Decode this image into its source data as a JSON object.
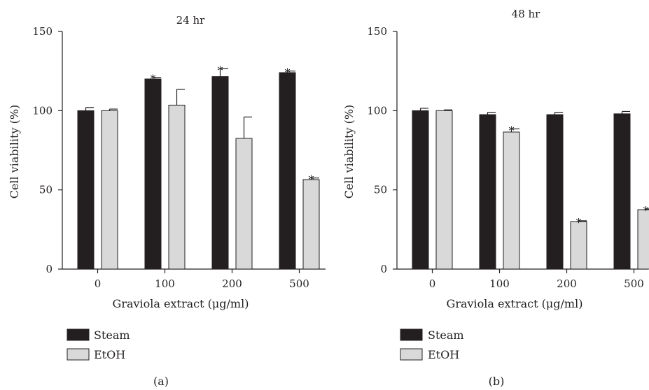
{
  "chart_data": [
    {
      "type": "bar",
      "title": "24 hr",
      "panel_label": "(a)",
      "xlabel": "Graviola extract (μg/ml)",
      "ylabel": "Cell viability (%)",
      "ylim": [
        0,
        150
      ],
      "yticks": [
        0,
        50,
        100,
        150
      ],
      "categories": [
        "0",
        "100",
        "200",
        "500"
      ],
      "series": [
        {
          "name": "Steam",
          "color": "#231f20",
          "values": [
            100,
            120,
            121.5,
            124
          ],
          "errors": [
            2,
            1,
            5,
            1
          ],
          "significant": [
            false,
            true,
            true,
            true
          ]
        },
        {
          "name": "EtOH",
          "color": "#d9d9d9",
          "values": [
            100,
            103.5,
            82.5,
            56.5
          ],
          "errors": [
            1,
            10,
            13.5,
            1
          ],
          "significant": [
            false,
            false,
            false,
            true
          ]
        }
      ],
      "significance_marker": "*",
      "legend_position": "bottom-left",
      "grid": false
    },
    {
      "type": "bar",
      "title": "48 hr",
      "panel_label": "(b)",
      "xlabel": "Graviola extract (μg/ml)",
      "ylabel": "Cell viability (%)",
      "ylim": [
        0,
        150
      ],
      "yticks": [
        0,
        50,
        100,
        150
      ],
      "categories": [
        "0",
        "100",
        "200",
        "500"
      ],
      "series": [
        {
          "name": "Steam",
          "color": "#231f20",
          "values": [
            100,
            97.5,
            97.5,
            98
          ],
          "errors": [
            1.5,
            1.5,
            1.5,
            1.5
          ],
          "significant": [
            false,
            false,
            false,
            false
          ]
        },
        {
          "name": "EtOH",
          "color": "#d9d9d9",
          "values": [
            100,
            86.5,
            30,
            37.5
          ],
          "errors": [
            0.5,
            2,
            0.5,
            0.5
          ],
          "significant": [
            false,
            true,
            true,
            true
          ]
        }
      ],
      "significance_marker": "*",
      "legend_position": "bottom-left",
      "grid": false
    }
  ]
}
